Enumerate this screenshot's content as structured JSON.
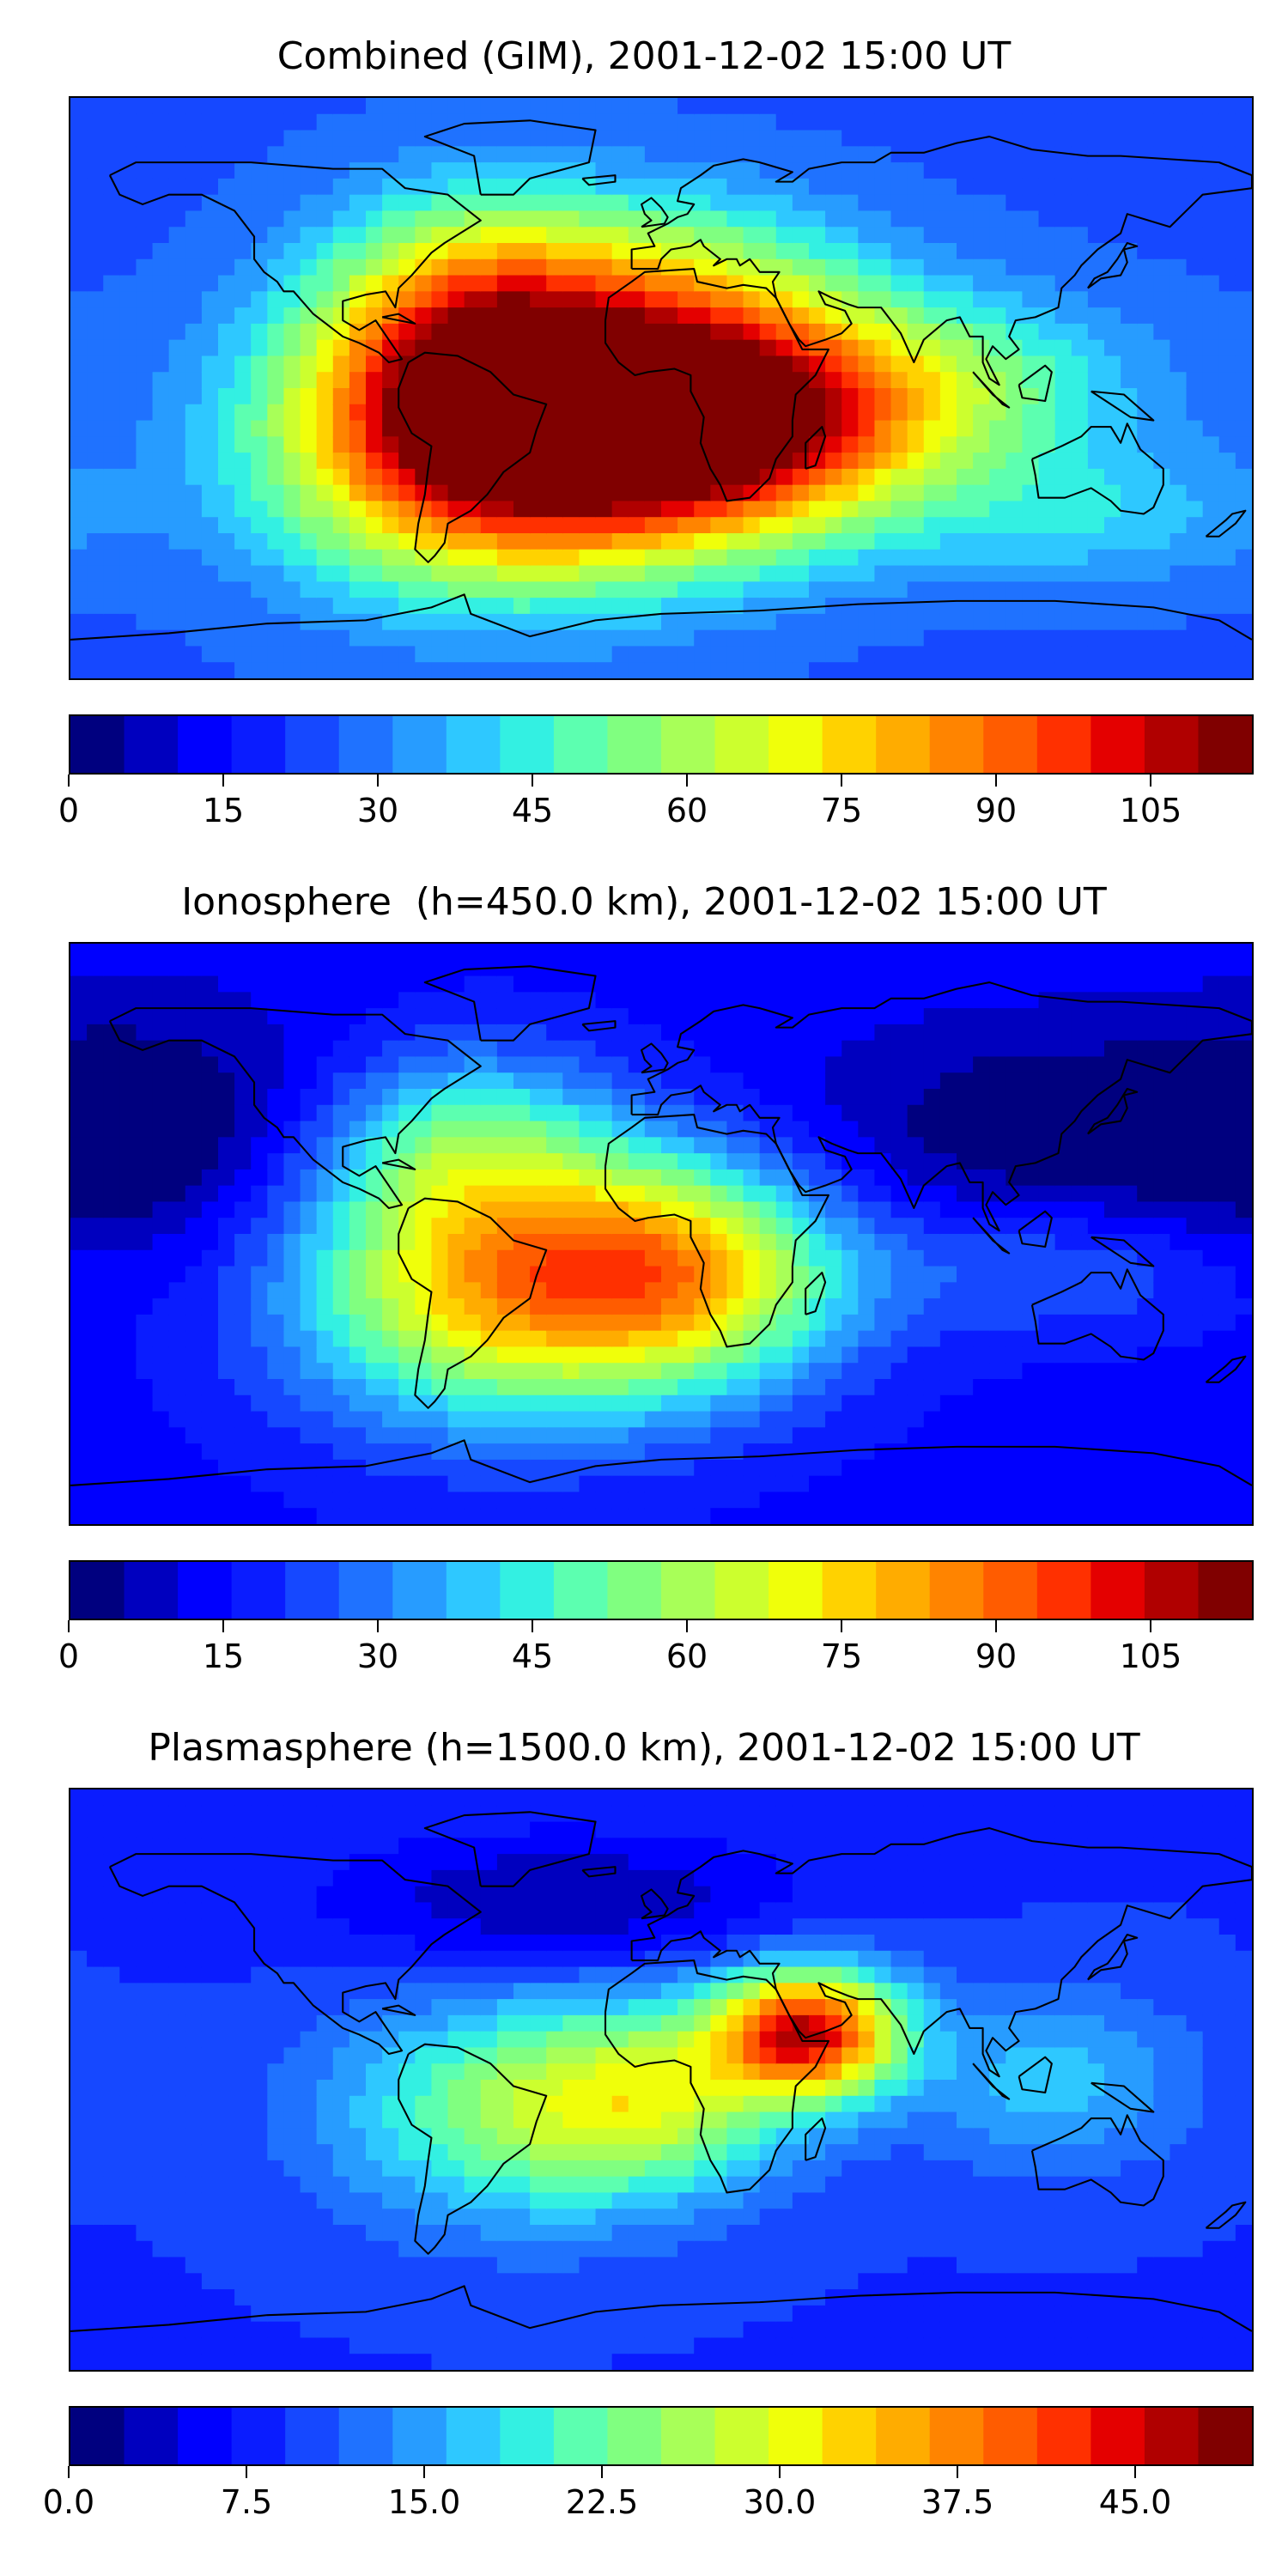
{
  "panels": [
    {
      "title": "Combined (GIM), 2001-12-02 15:00 UT",
      "vmax": 115,
      "ticks": [
        "0",
        "15",
        "30",
        "45",
        "60",
        "75",
        "90",
        "105"
      ],
      "tick_values": [
        0,
        15,
        30,
        45,
        60,
        75,
        90,
        105
      ],
      "field": {
        "background": 25,
        "blobs": [
          {
            "lon": -50,
            "lat": -15,
            "value": 95,
            "slon": 45,
            "slat": 30
          },
          {
            "lon": 20,
            "lat": -10,
            "value": 85,
            "slon": 40,
            "slat": 25
          },
          {
            "lon": -60,
            "lat": 25,
            "value": 35,
            "slon": 30,
            "slat": 25
          },
          {
            "lon": 0,
            "lat": 35,
            "value": 25,
            "slon": 40,
            "slat": 20
          },
          {
            "lon": 90,
            "lat": 0,
            "value": 25,
            "slon": 40,
            "slat": 20
          },
          {
            "lon": 130,
            "lat": -40,
            "value": 15,
            "slon": 40,
            "slat": 15
          }
        ]
      }
    },
    {
      "title": "Ionosphere  (h=450.0 km), 2001-12-02 15:00 UT",
      "vmax": 115,
      "ticks": [
        "0",
        "15",
        "30",
        "45",
        "60",
        "75",
        "90",
        "105"
      ],
      "tick_values": [
        0,
        15,
        30,
        45,
        60,
        75,
        90,
        105
      ],
      "field": {
        "background": 14,
        "blobs": [
          {
            "lon": -50,
            "lat": -15,
            "value": 62,
            "slon": 45,
            "slat": 30
          },
          {
            "lon": 10,
            "lat": -12,
            "value": 48,
            "slon": 35,
            "slat": 25
          },
          {
            "lon": -60,
            "lat": 30,
            "value": 25,
            "slon": 30,
            "slat": 20
          },
          {
            "lon": 120,
            "lat": 30,
            "value": -14,
            "slon": 60,
            "slat": 25
          },
          {
            "lon": -150,
            "lat": 30,
            "value": -12,
            "slon": 40,
            "slat": 30
          },
          {
            "lon": 120,
            "lat": -10,
            "value": 15,
            "slon": 40,
            "slat": 15
          }
        ]
      }
    },
    {
      "title": "Plasmasphere (h=1500.0 km), 2001-12-02 15:00 UT",
      "vmax": 50,
      "ticks": [
        "0.0",
        "7.5",
        "15.0",
        "22.5",
        "30.0",
        "37.5",
        "45.0"
      ],
      "tick_values": [
        0,
        7.5,
        15,
        22.5,
        30,
        37.5,
        45
      ],
      "field": {
        "background": 9,
        "blobs": [
          {
            "lon": 45,
            "lat": 15,
            "value": 34,
            "slon": 20,
            "slat": 14
          },
          {
            "lon": -45,
            "lat": -10,
            "value": 14,
            "slon": 40,
            "slat": 25
          },
          {
            "lon": 0,
            "lat": -5,
            "value": 14,
            "slon": 30,
            "slat": 20
          },
          {
            "lon": 120,
            "lat": 0,
            "value": 8,
            "slon": 30,
            "slat": 20
          },
          {
            "lon": -30,
            "lat": 55,
            "value": -7,
            "slon": 50,
            "slat": 15
          }
        ]
      }
    }
  ],
  "colormap": [
    "#00007f",
    "#0000bf",
    "#0000fe",
    "#0a1cff",
    "#1648ff",
    "#1f72ff",
    "#279cff",
    "#2ec8ff",
    "#33f0e2",
    "#5cffb0",
    "#80ff80",
    "#a8ff58",
    "#ccff2e",
    "#f0ff0a",
    "#ffd200",
    "#ffac00",
    "#ff8400",
    "#ff5c00",
    "#ff3000",
    "#e40000",
    "#b00000",
    "#800000"
  ],
  "coastline_color": "#000000"
}
